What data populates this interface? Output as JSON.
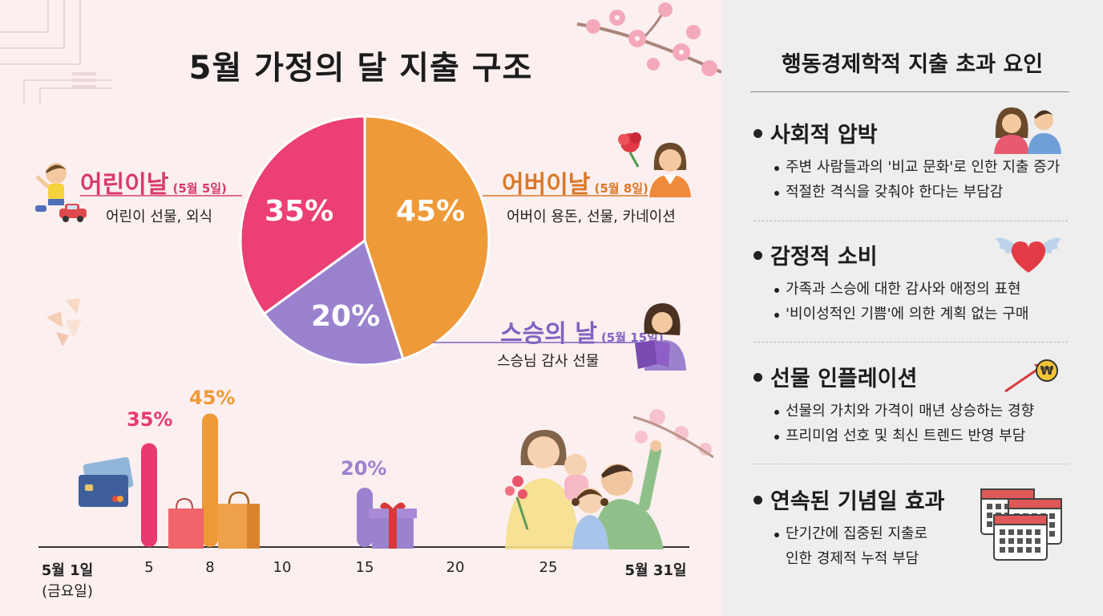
{
  "title": "5월 가정의 달 지출 구조",
  "chart_data": {
    "type": "pie",
    "slices": [
      {
        "label": "어버이날",
        "value": 45,
        "color": "#ee9a38"
      },
      {
        "label": "스승의 날",
        "value": 20,
        "color": "#9b82cf"
      },
      {
        "label": "어린이날",
        "value": 35,
        "color": "#ec3f73"
      }
    ]
  },
  "pie_labels": [
    "45%",
    "20%",
    "35%"
  ],
  "events": {
    "children": {
      "name": "어린이날",
      "date": "(5월 5일)",
      "desc": "어린이 선물, 외식",
      "color": "#d93a6a"
    },
    "parents": {
      "name": "어버이날",
      "date": "(5월 8일)",
      "desc": "어버이 용돈, 선물, 카네이션",
      "color": "#d9782a"
    },
    "teacher": {
      "name": "스승의 날",
      "date": "(5월 15일)",
      "desc": "스승님 감사 선물",
      "color": "#7f63c2"
    }
  },
  "timeline": {
    "bars": [
      {
        "day": 5,
        "value": 35,
        "label": "35%",
        "color": "#e83a6e"
      },
      {
        "day": 8,
        "value": 45,
        "label": "45%",
        "color": "#ee9a38"
      },
      {
        "day": 15,
        "value": 20,
        "label": "20%",
        "color": "#9b82cf"
      }
    ],
    "start_label": "5월 1일",
    "start_sub": "(금요일)",
    "end_label": "5월 31일",
    "ticks": [
      "5",
      "8",
      "10",
      "15",
      "20",
      "25"
    ]
  },
  "right": {
    "title": "행동경제학적 지출 초과 요인",
    "sections": [
      {
        "title": "사회적 압박",
        "bullets": [
          "주변 사람들과의 '비교 문화'로 인한 지출 증가",
          "적절한 격식을 갖춰야 한다는 부담감"
        ]
      },
      {
        "title": "감정적 소비",
        "bullets": [
          "가족과 스승에 대한 감사와 애정의 표현",
          "'비이성적인 기쁨'에 의한 계획 없는 구매"
        ]
      },
      {
        "title": "선물 인플레이션",
        "bullets": [
          "선물의 가치와 가격이 매년 상승하는 경향",
          "프리미엄 선호 및 최신 트렌드 반영 부담"
        ]
      },
      {
        "title": "연속된 기념일 효과",
        "bullets": [
          "단기간에 집중된 지출로"
        ],
        "continuation": "인한 경제적 누적 부담"
      }
    ]
  },
  "icons": [
    "child-icon",
    "toy-car-icon",
    "carnation-icon",
    "mother-icon",
    "teacher-icon",
    "credit-card-icon",
    "shopping-bag-icon",
    "gift-box-icon",
    "family-icon",
    "gossip-people-icon",
    "winged-heart-icon",
    "rising-arrow-icon",
    "won-coin-icon",
    "calendar-stack-icon",
    "cherry-blossom-icon"
  ],
  "won_symbol": "₩"
}
